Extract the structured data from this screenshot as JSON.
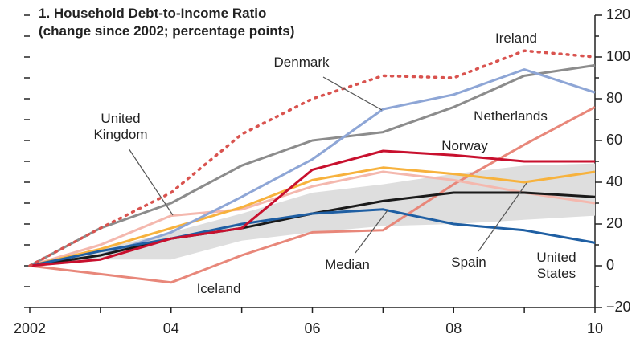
{
  "chart_data": {
    "type": "line",
    "title": "1. Household Debt-to-Income Ratio",
    "subtitle": "(change since 2002; percentage points)",
    "x": [
      2002,
      2003,
      2004,
      2005,
      2006,
      2007,
      2008,
      2009,
      2010
    ],
    "xlim": [
      2002,
      2010
    ],
    "xticks": [
      2002,
      {
        "value": 2004,
        "label": "04"
      },
      {
        "value": 2006,
        "label": "06"
      },
      {
        "value": 2008,
        "label": "08"
      },
      {
        "value": 2010,
        "label": "10"
      }
    ],
    "xminor_ticks": [
      2003,
      2005,
      2007,
      2009
    ],
    "ylim": [
      -20,
      120
    ],
    "yticks": [
      {
        "value": -20,
        "label": "−20"
      },
      0,
      20,
      40,
      60,
      80,
      100,
      120
    ],
    "yminor_ticks": [
      -10,
      10,
      30,
      50,
      70,
      90,
      110
    ],
    "band": {
      "color": "#dedede",
      "upper": [
        0,
        8,
        16,
        25,
        35,
        39,
        44,
        48,
        49
      ],
      "lower": [
        0,
        3,
        3,
        12,
        16,
        19,
        20,
        22,
        24
      ]
    },
    "series": [
      {
        "name": "Iceland",
        "color": "#e8877a",
        "style": "solid",
        "values": [
          0,
          -4,
          -8,
          5,
          16,
          17,
          39,
          58,
          76
        ]
      },
      {
        "name": "Netherlands",
        "color": "#8c8c8c",
        "style": "solid",
        "values": [
          0,
          18,
          30,
          48,
          60,
          64,
          76,
          91,
          96
        ]
      },
      {
        "name": "United Kingdom",
        "color": "#f4b8ae",
        "style": "solid",
        "values": [
          0,
          10,
          24,
          27,
          38,
          45,
          41,
          35,
          30
        ]
      },
      {
        "name": "Spain",
        "color": "#f7b23d",
        "style": "solid",
        "values": [
          0,
          8,
          18,
          28,
          41,
          47,
          44,
          40,
          45
        ]
      },
      {
        "name": "Denmark",
        "color": "#8ea6d6",
        "style": "solid",
        "values": [
          0,
          5,
          16,
          33,
          51,
          75,
          82,
          94,
          83
        ]
      },
      {
        "name": "Median",
        "color": "#1a1a1a",
        "style": "solid",
        "values": [
          0,
          5,
          13,
          18,
          25,
          31,
          35,
          35,
          33
        ]
      },
      {
        "name": "United States",
        "color": "#1f5fa3",
        "style": "solid",
        "values": [
          0,
          7,
          13,
          20,
          25,
          27,
          20,
          17,
          11
        ]
      },
      {
        "name": "Norway",
        "color": "#c8102e",
        "style": "solid",
        "values": [
          0,
          3,
          13,
          18,
          46,
          55,
          53,
          50,
          50
        ]
      },
      {
        "name": "Ireland",
        "color": "#d9534f",
        "style": "dotted",
        "values": [
          0,
          18,
          35,
          63,
          80,
          91,
          90,
          103,
          100
        ]
      }
    ]
  }
}
